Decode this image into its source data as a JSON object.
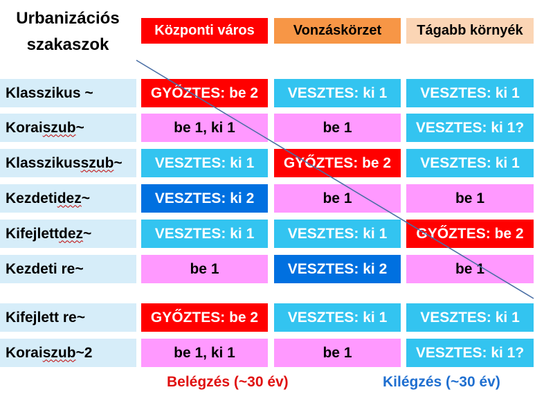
{
  "title_line1": "Urbanizációs",
  "title_line2": "szakaszok",
  "columns": [
    {
      "label": "Központi város",
      "bg": "#ff0000",
      "fg": "#ffffff"
    },
    {
      "label": "Vonzáskörzet",
      "bg": "#f79646",
      "fg": "#000000"
    },
    {
      "label": "Tágabb környék",
      "bg": "#fbd5b5",
      "fg": "#000000"
    }
  ],
  "rows": [
    {
      "label_a": "Klasszikus ~",
      "label_w": "",
      "label_b": "",
      "cells": [
        {
          "text": "GYŐZTES: be 2",
          "bg": "#ff0000",
          "fg": "#ffffff"
        },
        {
          "text": "VESZTES: ki 1",
          "bg": "#33c4f0",
          "fg": "#ffffff"
        },
        {
          "text": "VESZTES: ki 1",
          "bg": "#33c4f0",
          "fg": "#ffffff"
        }
      ]
    },
    {
      "label_a": "Korai ",
      "label_w": "szub",
      "label_b": "~",
      "cells": [
        {
          "text": "be 1, ki 1",
          "bg": "#ff99ff",
          "fg": "#000000"
        },
        {
          "text": "be 1",
          "bg": "#ff99ff",
          "fg": "#000000"
        },
        {
          "text": "VESZTES: ki 1?",
          "bg": "#33c4f0",
          "fg": "#ffffff"
        }
      ]
    },
    {
      "label_a": "Klasszikus ",
      "label_w": "szub",
      "label_b": "~",
      "cells": [
        {
          "text": "VESZTES: ki 1",
          "bg": "#33c4f0",
          "fg": "#ffffff"
        },
        {
          "text": "GYŐZTES: be 2",
          "bg": "#ff0000",
          "fg": "#ffffff"
        },
        {
          "text": "VESZTES: ki 1",
          "bg": "#33c4f0",
          "fg": "#ffffff"
        }
      ]
    },
    {
      "label_a": "Kezdeti ",
      "label_w": "dez",
      "label_b": "~",
      "cells": [
        {
          "text": "VESZTES: ki 2",
          "bg": "#0070e0",
          "fg": "#ffffff"
        },
        {
          "text": "be 1",
          "bg": "#ff99ff",
          "fg": "#000000"
        },
        {
          "text": "be 1",
          "bg": "#ff99ff",
          "fg": "#000000"
        }
      ]
    },
    {
      "label_a": "Kifejlett ",
      "label_w": "dez",
      "label_b": "~",
      "cells": [
        {
          "text": "VESZTES: ki 1",
          "bg": "#33c4f0",
          "fg": "#ffffff"
        },
        {
          "text": "VESZTES: ki 1",
          "bg": "#33c4f0",
          "fg": "#ffffff"
        },
        {
          "text": "GYŐZTES: be 2",
          "bg": "#ff0000",
          "fg": "#ffffff"
        }
      ]
    },
    {
      "label_a": "Kezdeti re~",
      "label_w": "",
      "label_b": "",
      "cells": [
        {
          "text": "be 1",
          "bg": "#ff99ff",
          "fg": "#000000"
        },
        {
          "text": "VESZTES: ki 2",
          "bg": "#0070e0",
          "fg": "#ffffff"
        },
        {
          "text": "be 1",
          "bg": "#ff99ff",
          "fg": "#000000"
        }
      ]
    },
    {
      "label_a": "Kifejlett re~",
      "label_w": "",
      "label_b": "",
      "cells": [
        {
          "text": "GYŐZTES: be 2",
          "bg": "#ff0000",
          "fg": "#ffffff"
        },
        {
          "text": "VESZTES: ki 1",
          "bg": "#33c4f0",
          "fg": "#ffffff"
        },
        {
          "text": "VESZTES: ki 1",
          "bg": "#33c4f0",
          "fg": "#ffffff"
        }
      ]
    },
    {
      "label_a": "Korai ",
      "label_w": "szub",
      "label_b": "~2",
      "cells": [
        {
          "text": "be 1, ki 1",
          "bg": "#ff99ff",
          "fg": "#000000"
        },
        {
          "text": "be 1",
          "bg": "#ff99ff",
          "fg": "#000000"
        },
        {
          "text": "VESZTES: ki 1?",
          "bg": "#33c4f0",
          "fg": "#ffffff"
        }
      ]
    }
  ],
  "footer_left": {
    "text": "Belégzés (~30 év)",
    "color": "#e01010"
  },
  "footer_right": {
    "text": "Kilégzés (~30 év)",
    "color": "#1f6fd0"
  },
  "diagonal_color": "#4a6fa5"
}
